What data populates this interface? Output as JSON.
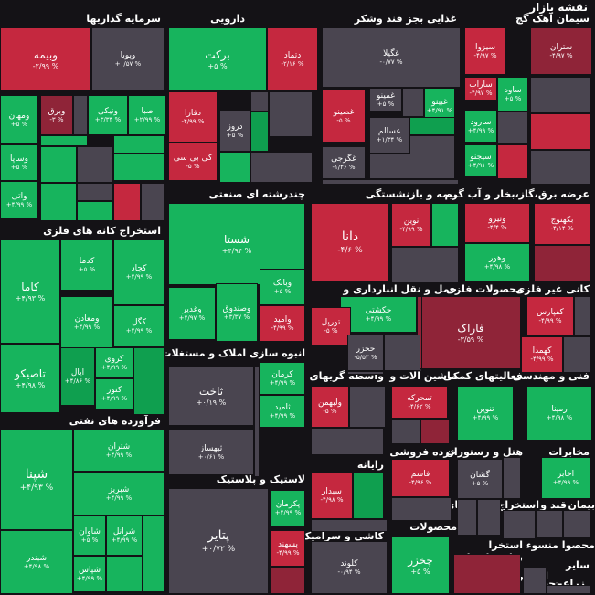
{
  "page": {
    "title": "نقشه بازار"
  },
  "colors": {
    "background": "#141216",
    "dark_green": "#0f9f4f",
    "green": "#17b45d",
    "mid_green": "#11934b",
    "neutral": "#4a4550",
    "red": "#c5283f",
    "dark_red": "#8f2438"
  },
  "sectors": {
    "investment": "سرمایه گذاریها",
    "pharma": "دارویی",
    "food": "غذایی بجز قند وشکر",
    "cement": "سیمان آهک گچ",
    "metal_mining": "استخراج کانه های فلزی",
    "refined_products": "چندرشته ای صنعتی",
    "petroleum": "فرآورده های نفتی",
    "mass_builders": "انبوه سازی املاک و مستغلات",
    "rubber_plastic": "لاستیک و پلاستیک",
    "insurance": "بیمه و بازنشستگی",
    "utilities": "عرضه برق،گاز،بخار و آب گرم",
    "transport": "حمل و نقل انبارداری و",
    "metals": "محصولات فلزی",
    "nonmetal_minerals": "کانی غیر فلزی",
    "credit": "واسطه گریهای",
    "machinery": "ماشین آلات و",
    "chemicals": "فعالیتهای کمکی",
    "engineering": "فنی و مهندسی",
    "computer": "رایانه",
    "retail": "خرده فروشی",
    "hotel": "هتل و رستوران",
    "telecom": "مخابرات",
    "tile": "کاشی و سرامیک",
    "products": "محصولات",
    "devices": "دستگاههای",
    "extraction": "استخراج",
    "sugar": "قند و",
    "cinema": "بیمان",
    "products2": "محصوا منسوء استخرا",
    "other_finance": "سایر واسطه",
    "stone": "استخرا",
    "other": "سایر",
    "agri": "زراعت",
    "paper": "محه"
  },
  "tiles": [
    {
      "n": "وبیمه",
      "p": "-۲/۹۹ %"
    },
    {
      "n": "وپویا",
      "p": "+۰/۵۷ %"
    },
    {
      "n": "برکت",
      "p": "+۵ %"
    },
    {
      "n": "دتماد",
      "p": "-۲/۱۶ %"
    },
    {
      "n": "غگیلا",
      "p": "-۰/۷۷ %"
    },
    {
      "n": "سیزوا",
      "p": "-۴/۹۷ %"
    },
    {
      "n": "ستران",
      "p": "-۴/۹۷ %"
    },
    {
      "n": "ومهان",
      "p": "+۵ %"
    },
    {
      "n": "وبرق",
      "p": "-۳ %"
    },
    {
      "n": "ونیکی",
      "p": "+۳/۳۴ %"
    },
    {
      "n": "صبا",
      "p": "+۲/۹۹ %"
    },
    {
      "n": "وساپا",
      "p": "+۵ %"
    },
    {
      "n": "واتی",
      "p": "+۴/۹۹ %"
    },
    {
      "n": "دفارا",
      "p": "-۴/۹۹ %"
    },
    {
      "n": "دروز",
      "p": "+۵ %"
    },
    {
      "n": "کی بی سی",
      "p": "-۵ %"
    },
    {
      "n": "غمینو",
      "p": "+۵ %"
    },
    {
      "n": "غبینو",
      "p": "+۴/۹۱ %"
    },
    {
      "n": "غصینو",
      "p": "-۵ %"
    },
    {
      "n": "غسالم",
      "p": "+۱/۳۴ %"
    },
    {
      "n": "غگرجی",
      "p": "-۱/۴۶ %"
    },
    {
      "n": "ساراب",
      "p": "-۴/۹۷ %"
    },
    {
      "n": "ساوه",
      "p": "+۵ %"
    },
    {
      "n": "سارود",
      "p": "+۴/۹۹ %"
    },
    {
      "n": "سیجنو",
      "p": "+۴/۹۱ %"
    },
    {
      "n": "شستا",
      "p": "+۴/۹۴ %"
    },
    {
      "n": "دانا",
      "p": "-۴/۶ %"
    },
    {
      "n": "نوین",
      "p": "-۴/۹۹ %"
    },
    {
      "n": "ونیرو",
      "p": "-۴/۴ %"
    },
    {
      "n": "بکهنوج",
      "p": "-۴/۱۴ %"
    },
    {
      "n": "وهور",
      "p": "+۴/۹۸ %"
    },
    {
      "n": "کاما",
      "p": "+۴/۹۳ %"
    },
    {
      "n": "کدما",
      "p": "+۵ %"
    },
    {
      "n": "کچاد",
      "p": "+۴/۹۹ %"
    },
    {
      "n": "ومعادن",
      "p": "+۴/۹۹ %"
    },
    {
      "n": "کگل",
      "p": "+۴/۹۹ %"
    },
    {
      "n": "وبانک",
      "p": "+۵ %"
    },
    {
      "n": "وصندوق",
      "p": "+۳/۳۷ %"
    },
    {
      "n": "وغدیر",
      "p": "+۴/۹۷ %"
    },
    {
      "n": "وامید",
      "p": "-۴/۹۹ %"
    },
    {
      "n": "حکشتی",
      "p": "+۴/۹۹ %"
    },
    {
      "n": "تاصیکو",
      "p": "+۴/۹۸ %"
    },
    {
      "n": "ایال",
      "p": "+۴/۸۶ %"
    },
    {
      "n": "کروی",
      "p": "+۴/۹۹ %"
    },
    {
      "n": "کنور",
      "p": "+۴/۹۹ %"
    },
    {
      "n": "تورپل",
      "p": "-۵ %"
    },
    {
      "n": "حخزر",
      "p": "-۵/۵۳ %"
    },
    {
      "n": "فاراک",
      "p": "-۳/۵۹ %"
    },
    {
      "n": "کفپارس",
      "p": "-۴/۹۹ %"
    },
    {
      "n": "کهمدا",
      "p": "-۴/۹۹ %"
    },
    {
      "n": "ثاخت",
      "p": "+۰/۱۹ %"
    },
    {
      "n": "کرمان",
      "p": "+۴/۹۹ %"
    },
    {
      "n": "ثامید",
      "p": "+۴/۹۹ %"
    },
    {
      "n": "ولبهمن",
      "p": "-۵ %"
    },
    {
      "n": "تمحرکه",
      "p": "-۴/۶۲ %"
    },
    {
      "n": "تنوین",
      "p": "+۴/۹۹ %"
    },
    {
      "n": "رمپنا",
      "p": "+۴/۹۸ %"
    },
    {
      "n": "ثبهساز",
      "p": "+۰/۶۱ %"
    },
    {
      "n": "شپنا",
      "p": "+۴/۹۳ %"
    },
    {
      "n": "شتران",
      "p": "+۴/۹۹ %"
    },
    {
      "n": "شبریز",
      "p": "+۴/۹۹ %"
    },
    {
      "n": "شاوان",
      "p": "+۵ %"
    },
    {
      "n": "شرانل",
      "p": "+۴/۹۹ %"
    },
    {
      "n": "شپاس",
      "p": "+۴/۹۹ %"
    },
    {
      "n": "شبندر",
      "p": "+۴/۹۸ %"
    },
    {
      "n": "پکرمان",
      "p": "+۴/۹۹ %"
    },
    {
      "n": "پسهند",
      "p": "-۴/۹۹ %"
    },
    {
      "n": "پتایر",
      "p": "+۰/۷۲ %"
    },
    {
      "n": "سیدار",
      "p": "-۴/۹۸ %"
    },
    {
      "n": "فاسم",
      "p": "-۴/۹۶ %"
    },
    {
      "n": "گشان",
      "p": "+۵ %"
    },
    {
      "n": "اخابر",
      "p": "+۴/۹۹ %"
    },
    {
      "n": "کلوند",
      "p": "-۰/۹۴ %"
    },
    {
      "n": "چخزر",
      "p": "+۵ %"
    }
  ]
}
